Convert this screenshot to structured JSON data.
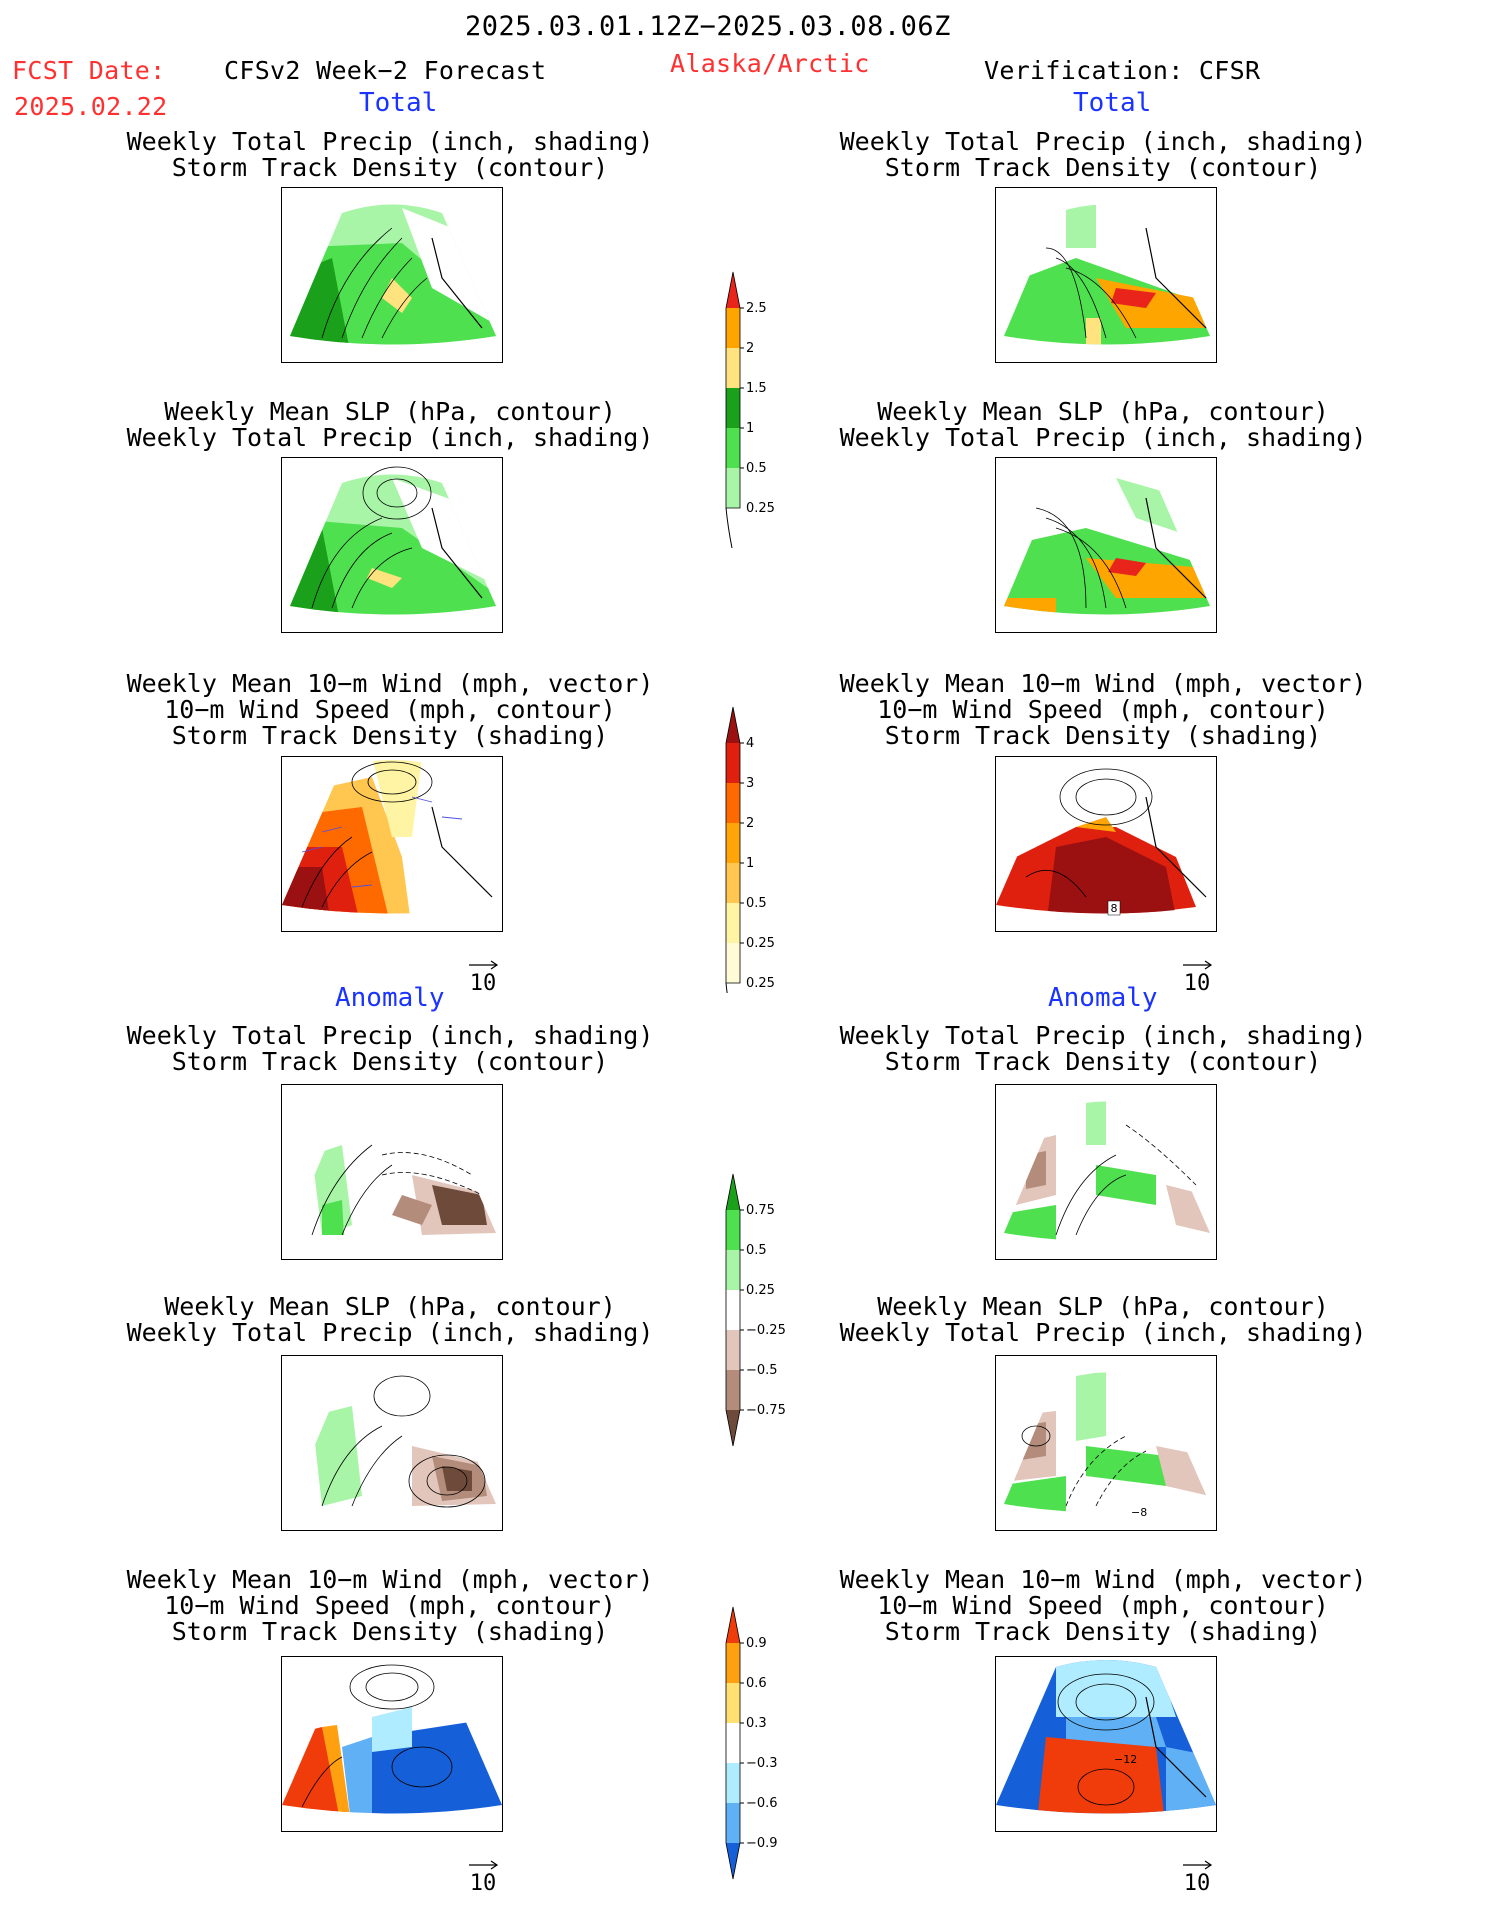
{
  "header": {
    "period": "2025.03.01.12Z−2025.03.08.06Z",
    "fcst_date_label": "FCST Date:",
    "fcst_date_value": "2025.02.22",
    "forecast_label": "CFSv2 Week−2 Forecast",
    "region": "Alaska/Arctic",
    "verification_label": "Verification: CFSR"
  },
  "sections": {
    "total": "Total",
    "anomaly": "Anomaly"
  },
  "panel_titles": {
    "precip_storm": [
      "Weekly Total Precip (inch, shading)",
      "Storm Track Density (contour)"
    ],
    "slp_precip": [
      "Weekly Mean SLP (hPa, contour)",
      "Weekly Total Precip (inch, shading)"
    ],
    "wind_storm": [
      "Weekly Mean 10−m Wind (mph, vector)",
      "10−m Wind Speed (mph, contour)",
      "Storm Track Density (shading)"
    ]
  },
  "vector_reference": "10",
  "colorbars": {
    "precip_total": {
      "labels": [
        "2.5",
        "2",
        "1.5",
        "1",
        "0.5",
        "0.25"
      ],
      "colors": [
        "#e8241b",
        "#ffa500",
        "#ffe37f",
        "#1aa01a",
        "#4fe04f",
        "#a8f5a8"
      ]
    },
    "storm_total": {
      "labels": [
        "4",
        "3",
        "2",
        "1",
        "0.5",
        "0.25"
      ],
      "colors": [
        "#9b1010",
        "#e0200f",
        "#ff6a00",
        "#ffa50a",
        "#ffc650",
        "#fff4a3",
        "#fffbd6"
      ]
    },
    "precip_anom": {
      "labels": [
        "0.75",
        "0.5",
        "0.25",
        "−0.25",
        "−0.5",
        "−0.75"
      ],
      "colors": [
        "#1aa01a",
        "#4fe04f",
        "#a8f5a8",
        "#ffffff",
        "#e2c6bc",
        "#b38c7c",
        "#6e4a3a"
      ]
    },
    "storm_anom": {
      "labels": [
        "0.9",
        "0.6",
        "0.3",
        "−0.3",
        "−0.6",
        "−0.9"
      ],
      "colors": [
        "#f03c0a",
        "#ffa010",
        "#ffe070",
        "#ffffff",
        "#b0ecff",
        "#5fb0f5",
        "#1560d8"
      ]
    }
  },
  "panel_labels": {
    "right_wind_total": "8",
    "right_slp_anom": "−8",
    "right_wind_anom": "−12"
  }
}
